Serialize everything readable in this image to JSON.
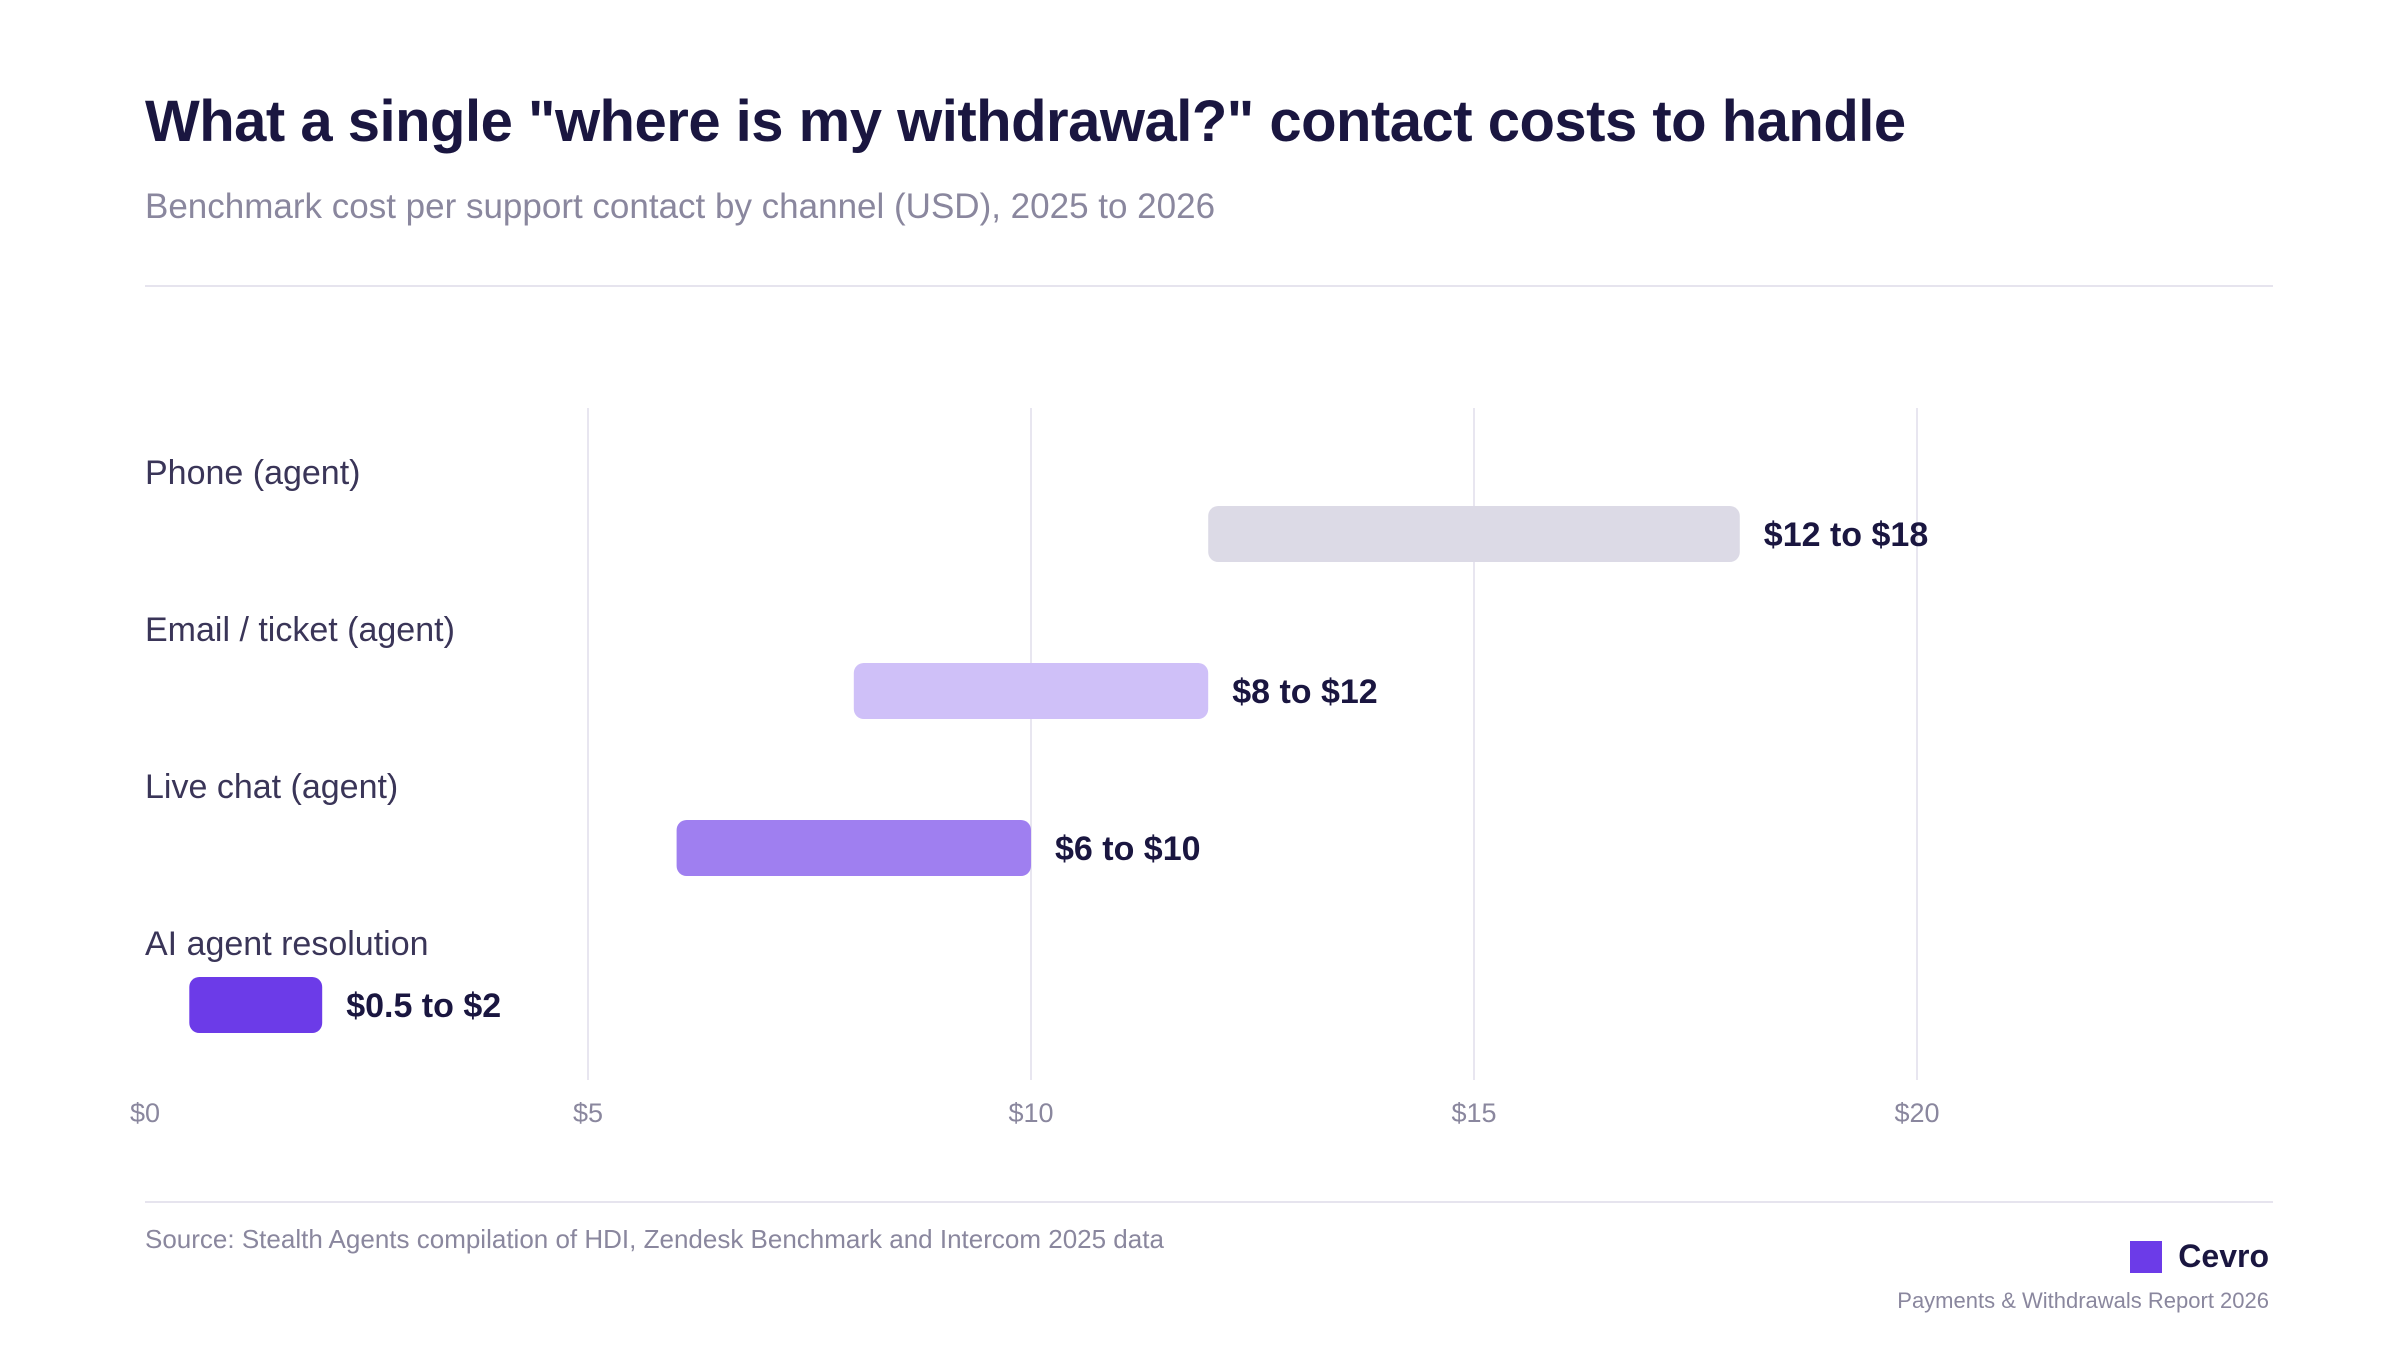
{
  "header": {
    "title": "What a single \"where is my withdrawal?\" contact costs to handle",
    "subtitle": "Benchmark cost per support contact by channel (USD), 2025 to 2026"
  },
  "footer": {
    "source": "Source: Stealth Agents compilation of HDI, Zendesk Benchmark and Intercom 2025 data",
    "brand_name": "Cevro",
    "report_name": "Payments & Withdrawals Report 2026"
  },
  "colors": {
    "brand": "#6c3be8",
    "title": "#1a1640",
    "grid": "#e8e6f0"
  },
  "chart_data": {
    "type": "bar",
    "orientation": "horizontal-range",
    "title": "What a single \"where is my withdrawal?\" contact costs to handle",
    "xlabel": "",
    "ylabel": "",
    "xlim": [
      0,
      24
    ],
    "grid": true,
    "x_ticks": [
      {
        "value": 0,
        "label": "$0"
      },
      {
        "value": 5,
        "label": "$5"
      },
      {
        "value": 10,
        "label": "$10"
      },
      {
        "value": 15,
        "label": "$15"
      },
      {
        "value": 20,
        "label": "$20"
      }
    ],
    "categories": [
      "Phone (agent)",
      "Email / ticket (agent)",
      "Live chat (agent)",
      "AI agent resolution"
    ],
    "ranges": [
      {
        "category": "Phone (agent)",
        "low": 12,
        "high": 18,
        "label": "$12 to $18",
        "color": "#dcdae6"
      },
      {
        "category": "Email / ticket (agent)",
        "low": 8,
        "high": 12,
        "label": "$8 to $12",
        "color": "#cfc0f8"
      },
      {
        "category": "Live chat (agent)",
        "low": 6,
        "high": 10,
        "label": "$6 to $10",
        "color": "#9f7ff0"
      },
      {
        "category": "AI agent resolution",
        "low": 0.5,
        "high": 2,
        "label": "$0.5 to $2",
        "color": "#6c3be8"
      }
    ]
  }
}
